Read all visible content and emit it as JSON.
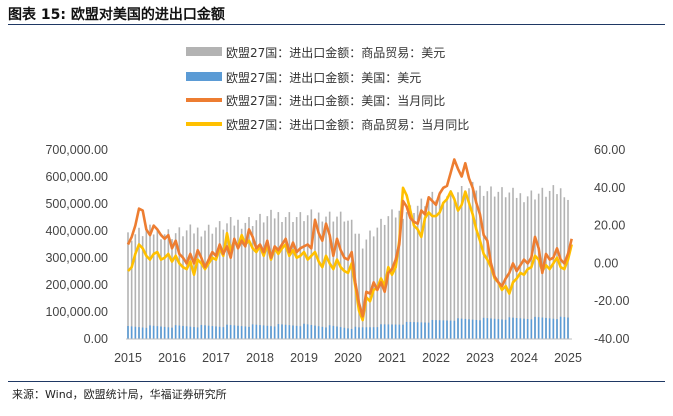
{
  "header": {
    "title": "图表 15:  欧盟对美国的进出口金额"
  },
  "footer": {
    "source": "来源：Wind，欧盟统计局，华福证券研究所"
  },
  "colors": {
    "rule": "#1f3864"
  },
  "chart_data": {
    "type": "bar+line",
    "title": "",
    "x_ticks": [
      "2015",
      "2016",
      "2017",
      "2018",
      "2019",
      "2020",
      "2021",
      "2022",
      "2023",
      "2024",
      "2025"
    ],
    "x_range": [
      "2015-01",
      "2025-01"
    ],
    "y_left": {
      "ylim": [
        0,
        700000
      ],
      "ticks": [
        "0.00",
        "100,000.00",
        "200,000.00",
        "300,000.00",
        "400,000.00",
        "500,000.00",
        "600,000.00",
        "700,000.00"
      ]
    },
    "y_right": {
      "ylim": [
        -40,
        60
      ],
      "ticks": [
        "-40.00",
        "-20.00",
        "0.00",
        "20.00",
        "40.00",
        "60.00"
      ]
    },
    "legend_position": "top-center",
    "series": [
      {
        "name": "欧盟27国：进出口金额：商品贸易：美元",
        "kind": "bar",
        "axis": "left",
        "color": "#b3b3b3",
        "anchors": [
          [
            "2015-01",
            380000
          ],
          [
            "2015-06",
            400000
          ],
          [
            "2016-01",
            390000
          ],
          [
            "2016-12",
            410000
          ],
          [
            "2017-06",
            430000
          ],
          [
            "2017-12",
            440000
          ],
          [
            "2018-06",
            460000
          ],
          [
            "2018-12",
            450000
          ],
          [
            "2019-06",
            460000
          ],
          [
            "2019-12",
            450000
          ],
          [
            "2020-03",
            400000
          ],
          [
            "2020-05",
            360000
          ],
          [
            "2020-08",
            400000
          ],
          [
            "2020-12",
            450000
          ],
          [
            "2021-06",
            480000
          ],
          [
            "2021-12",
            520000
          ],
          [
            "2022-06",
            540000
          ],
          [
            "2022-12",
            560000
          ],
          [
            "2023-06",
            545000
          ],
          [
            "2023-12",
            530000
          ],
          [
            "2024-06",
            540000
          ],
          [
            "2024-12",
            550000
          ],
          [
            "2025-01",
            520000
          ]
        ]
      },
      {
        "name": "欧盟27国：进出口金额：美国：美元",
        "kind": "bar",
        "axis": "left",
        "color": "#5b9bd5",
        "anchors": [
          [
            "2015-01",
            45000
          ],
          [
            "2017-01",
            48000
          ],
          [
            "2019-01",
            52000
          ],
          [
            "2020-04",
            40000
          ],
          [
            "2020-10",
            50000
          ],
          [
            "2021-06",
            60000
          ],
          [
            "2022-06",
            72000
          ],
          [
            "2023-06",
            75000
          ],
          [
            "2024-06",
            78000
          ],
          [
            "2025-01",
            78000
          ]
        ]
      },
      {
        "name": "欧盟27国：进出口金额：美国：当月同比",
        "kind": "line",
        "axis": "right",
        "color": "#ed7d31",
        "points": [
          [
            "2015-01",
            10
          ],
          [
            "2015-02",
            14
          ],
          [
            "2015-03",
            20
          ],
          [
            "2015-04",
            29
          ],
          [
            "2015-05",
            28
          ],
          [
            "2015-06",
            18
          ],
          [
            "2015-07",
            15
          ],
          [
            "2015-08",
            20
          ],
          [
            "2015-09",
            18
          ],
          [
            "2015-10",
            15
          ],
          [
            "2015-11",
            13
          ],
          [
            "2015-12",
            15
          ],
          [
            "2016-01",
            8
          ],
          [
            "2016-02",
            12
          ],
          [
            "2016-03",
            5
          ],
          [
            "2016-04",
            3
          ],
          [
            "2016-05",
            0
          ],
          [
            "2016-06",
            5
          ],
          [
            "2016-07",
            0
          ],
          [
            "2016-08",
            7
          ],
          [
            "2016-09",
            3
          ],
          [
            "2016-10",
            -2
          ],
          [
            "2016-11",
            2
          ],
          [
            "2016-12",
            6
          ],
          [
            "2017-01",
            4
          ],
          [
            "2017-02",
            10
          ],
          [
            "2017-03",
            5
          ],
          [
            "2017-04",
            9
          ],
          [
            "2017-05",
            3
          ],
          [
            "2017-06",
            13
          ],
          [
            "2017-07",
            8
          ],
          [
            "2017-08",
            12
          ],
          [
            "2017-09",
            9
          ],
          [
            "2017-10",
            18
          ],
          [
            "2017-11",
            14
          ],
          [
            "2017-12",
            8
          ],
          [
            "2018-01",
            10
          ],
          [
            "2018-02",
            6
          ],
          [
            "2018-03",
            12
          ],
          [
            "2018-04",
            3
          ],
          [
            "2018-05",
            9
          ],
          [
            "2018-06",
            7
          ],
          [
            "2018-07",
            10
          ],
          [
            "2018-08",
            13
          ],
          [
            "2018-09",
            6
          ],
          [
            "2018-10",
            11
          ],
          [
            "2018-11",
            6
          ],
          [
            "2018-12",
            8
          ],
          [
            "2019-01",
            9
          ],
          [
            "2019-02",
            10
          ],
          [
            "2019-03",
            8
          ],
          [
            "2019-04",
            23
          ],
          [
            "2019-05",
            16
          ],
          [
            "2019-06",
            12
          ],
          [
            "2019-07",
            21
          ],
          [
            "2019-08",
            15
          ],
          [
            "2019-09",
            4
          ],
          [
            "2019-10",
            13
          ],
          [
            "2019-11",
            7
          ],
          [
            "2019-12",
            3
          ],
          [
            "2020-01",
            2
          ],
          [
            "2020-02",
            6
          ],
          [
            "2020-03",
            -10
          ],
          [
            "2020-04",
            -21
          ],
          [
            "2020-05",
            -28
          ],
          [
            "2020-06",
            -15
          ],
          [
            "2020-07",
            -16
          ],
          [
            "2020-08",
            -10
          ],
          [
            "2020-09",
            -14
          ],
          [
            "2020-10",
            -10
          ],
          [
            "2020-11",
            -15
          ],
          [
            "2020-12",
            -5
          ],
          [
            "2021-01",
            -3
          ],
          [
            "2021-02",
            2
          ],
          [
            "2021-03",
            10
          ],
          [
            "2021-04",
            33
          ],
          [
            "2021-05",
            30
          ],
          [
            "2021-06",
            24
          ],
          [
            "2021-07",
            22
          ],
          [
            "2021-08",
            21
          ],
          [
            "2021-09",
            28
          ],
          [
            "2021-10",
            26
          ],
          [
            "2021-11",
            35
          ],
          [
            "2021-12",
            33
          ],
          [
            "2022-01",
            31
          ],
          [
            "2022-02",
            37
          ],
          [
            "2022-03",
            40
          ],
          [
            "2022-04",
            41
          ],
          [
            "2022-05",
            48
          ],
          [
            "2022-06",
            55
          ],
          [
            "2022-07",
            50
          ],
          [
            "2022-08",
            46
          ],
          [
            "2022-09",
            53
          ],
          [
            "2022-10",
            45
          ],
          [
            "2022-11",
            40
          ],
          [
            "2022-12",
            32
          ],
          [
            "2023-01",
            26
          ],
          [
            "2023-02",
            15
          ],
          [
            "2023-03",
            12
          ],
          [
            "2023-04",
            0
          ],
          [
            "2023-05",
            -7
          ],
          [
            "2023-06",
            -10
          ],
          [
            "2023-07",
            -12
          ],
          [
            "2023-08",
            -8
          ],
          [
            "2023-09",
            -5
          ],
          [
            "2023-10",
            0
          ],
          [
            "2023-11",
            -4
          ],
          [
            "2023-12",
            -1
          ],
          [
            "2024-01",
            2
          ],
          [
            "2024-02",
            0
          ],
          [
            "2024-03",
            3
          ],
          [
            "2024-04",
            14
          ],
          [
            "2024-05",
            8
          ],
          [
            "2024-06",
            -5
          ],
          [
            "2024-07",
            5
          ],
          [
            "2024-08",
            2
          ],
          [
            "2024-09",
            3
          ],
          [
            "2024-10",
            8
          ],
          [
            "2024-11",
            2
          ],
          [
            "2024-12",
            0
          ],
          [
            "2025-01",
            5
          ],
          [
            "2025-02",
            13
          ]
        ]
      },
      {
        "name": "欧盟27国：进出口金额：商品贸易：当月同比",
        "kind": "line",
        "axis": "right",
        "color": "#ffc000",
        "points": [
          [
            "2015-01",
            -4
          ],
          [
            "2015-02",
            -2
          ],
          [
            "2015-03",
            5
          ],
          [
            "2015-04",
            10
          ],
          [
            "2015-05",
            8
          ],
          [
            "2015-06",
            4
          ],
          [
            "2015-07",
            2
          ],
          [
            "2015-08",
            5
          ],
          [
            "2015-09",
            6
          ],
          [
            "2015-10",
            2
          ],
          [
            "2015-11",
            3
          ],
          [
            "2015-12",
            5
          ],
          [
            "2016-01",
            1
          ],
          [
            "2016-02",
            4
          ],
          [
            "2016-03",
            0
          ],
          [
            "2016-04",
            -2
          ],
          [
            "2016-05",
            -3
          ],
          [
            "2016-06",
            1
          ],
          [
            "2016-07",
            -6
          ],
          [
            "2016-08",
            2
          ],
          [
            "2016-09",
            0
          ],
          [
            "2016-10",
            -3
          ],
          [
            "2016-11",
            0
          ],
          [
            "2016-12",
            3
          ],
          [
            "2017-01",
            2
          ],
          [
            "2017-02",
            8
          ],
          [
            "2017-03",
            4
          ],
          [
            "2017-04",
            16
          ],
          [
            "2017-05",
            6
          ],
          [
            "2017-06",
            12
          ],
          [
            "2017-07",
            9
          ],
          [
            "2017-08",
            15
          ],
          [
            "2017-09",
            10
          ],
          [
            "2017-10",
            12
          ],
          [
            "2017-11",
            8
          ],
          [
            "2017-12",
            6
          ],
          [
            "2018-01",
            9
          ],
          [
            "2018-02",
            4
          ],
          [
            "2018-03",
            10
          ],
          [
            "2018-04",
            2
          ],
          [
            "2018-05",
            8
          ],
          [
            "2018-06",
            5
          ],
          [
            "2018-07",
            8
          ],
          [
            "2018-08",
            10
          ],
          [
            "2018-09",
            4
          ],
          [
            "2018-10",
            7
          ],
          [
            "2018-11",
            3
          ],
          [
            "2018-12",
            4
          ],
          [
            "2019-01",
            6
          ],
          [
            "2019-02",
            2
          ],
          [
            "2019-03",
            4
          ],
          [
            "2019-04",
            6
          ],
          [
            "2019-05",
            1
          ],
          [
            "2019-06",
            -2
          ],
          [
            "2019-07",
            4
          ],
          [
            "2019-08",
            0
          ],
          [
            "2019-09",
            -3
          ],
          [
            "2019-10",
            2
          ],
          [
            "2019-11",
            -2
          ],
          [
            "2019-12",
            -4
          ],
          [
            "2020-01",
            -5
          ],
          [
            "2020-02",
            0
          ],
          [
            "2020-03",
            -12
          ],
          [
            "2020-04",
            -25
          ],
          [
            "2020-05",
            -30
          ],
          [
            "2020-06",
            -18
          ],
          [
            "2020-07",
            -20
          ],
          [
            "2020-08",
            -14
          ],
          [
            "2020-09",
            -13
          ],
          [
            "2020-10",
            -8
          ],
          [
            "2020-11",
            -12
          ],
          [
            "2020-12",
            -2
          ],
          [
            "2021-01",
            -6
          ],
          [
            "2021-02",
            -2
          ],
          [
            "2021-03",
            12
          ],
          [
            "2021-04",
            40
          ],
          [
            "2021-05",
            36
          ],
          [
            "2021-06",
            28
          ],
          [
            "2021-07",
            20
          ],
          [
            "2021-08",
            18
          ],
          [
            "2021-09",
            14
          ],
          [
            "2021-10",
            24
          ],
          [
            "2021-11",
            27
          ],
          [
            "2021-12",
            25
          ],
          [
            "2022-01",
            25
          ],
          [
            "2022-02",
            27
          ],
          [
            "2022-03",
            32
          ],
          [
            "2022-04",
            34
          ],
          [
            "2022-05",
            38
          ],
          [
            "2022-06",
            34
          ],
          [
            "2022-07",
            28
          ],
          [
            "2022-08",
            31
          ],
          [
            "2022-09",
            38
          ],
          [
            "2022-10",
            32
          ],
          [
            "2022-11",
            26
          ],
          [
            "2022-12",
            18
          ],
          [
            "2023-01",
            12
          ],
          [
            "2023-02",
            5
          ],
          [
            "2023-03",
            2
          ],
          [
            "2023-04",
            -2
          ],
          [
            "2023-05",
            -8
          ],
          [
            "2023-06",
            -10
          ],
          [
            "2023-07",
            -14
          ],
          [
            "2023-08",
            -12
          ],
          [
            "2023-09",
            -16
          ],
          [
            "2023-10",
            -10
          ],
          [
            "2023-11",
            -8
          ],
          [
            "2023-12",
            -5
          ],
          [
            "2024-01",
            -6
          ],
          [
            "2024-02",
            -3
          ],
          [
            "2024-03",
            -2
          ],
          [
            "2024-04",
            4
          ],
          [
            "2024-05",
            2
          ],
          [
            "2024-06",
            -4
          ],
          [
            "2024-07",
            -1
          ],
          [
            "2024-08",
            -3
          ],
          [
            "2024-09",
            0
          ],
          [
            "2024-10",
            3
          ],
          [
            "2024-11",
            -2
          ],
          [
            "2024-12",
            -3
          ],
          [
            "2025-01",
            2
          ],
          [
            "2025-02",
            10
          ]
        ]
      }
    ]
  }
}
